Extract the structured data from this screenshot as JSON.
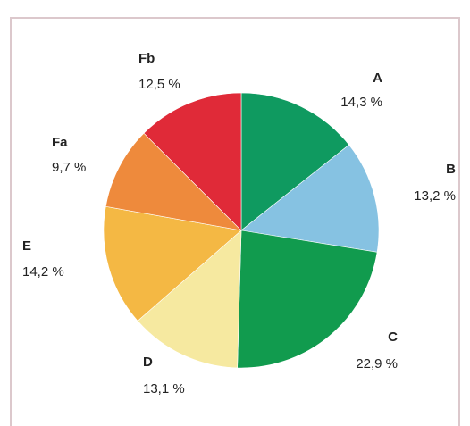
{
  "chart_data": {
    "type": "pie",
    "categories": [
      "A",
      "B",
      "C",
      "D",
      "E",
      "Fa",
      "Fb"
    ],
    "values": [
      14.3,
      13.2,
      22.9,
      13.1,
      14.2,
      9.7,
      12.5
    ],
    "value_labels": [
      "14,3 %",
      "13,2 %",
      "22,9 %",
      "13,1 %",
      "14,2 %",
      "9,7 %",
      "12,5 %"
    ],
    "colors": [
      "#0f9a60",
      "#86c2e2",
      "#119b4e",
      "#f6e9a0",
      "#f4b844",
      "#ee8a3c",
      "#e02a38"
    ]
  }
}
